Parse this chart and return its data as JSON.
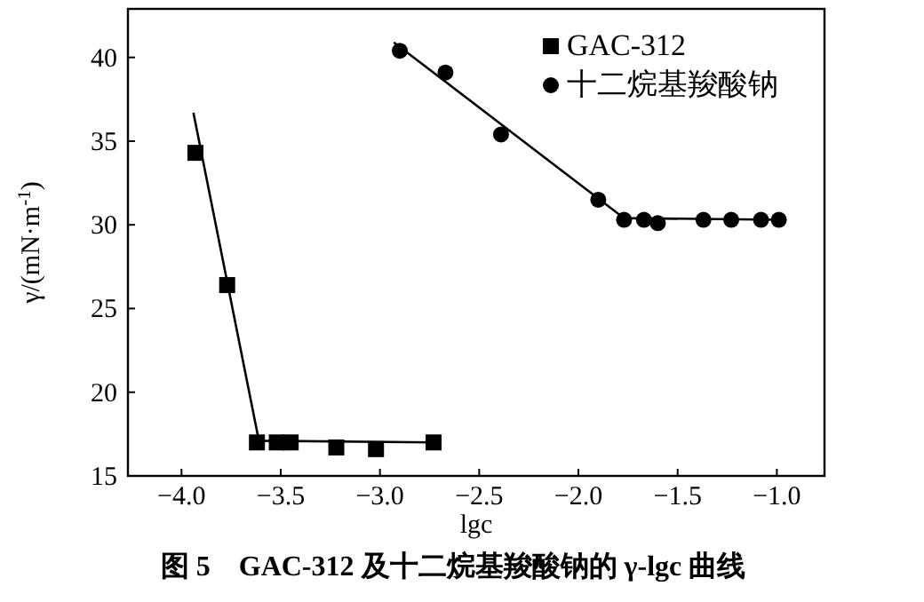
{
  "chart_data": {
    "type": "scatter",
    "xlabel": "lgc",
    "ylabel": "γ/(mN·m$^{-1}$)",
    "legend": "top right",
    "annotations": [
      "图 5　GAC-312 及十二烷基羧酸钠的 γ-lgc 曲线"
    ],
    "xlim": [
      -4.27,
      -0.76
    ],
    "ylim": [
      15,
      42.9
    ],
    "xticks": [
      {
        "value": -4.0,
        "label": "−4.0"
      },
      {
        "value": -3.5,
        "label": "−3.5"
      },
      {
        "value": -3.0,
        "label": "−3.0"
      },
      {
        "value": -2.5,
        "label": "−2.5"
      },
      {
        "value": -2.0,
        "label": "−2.0"
      },
      {
        "value": -1.5,
        "label": "−1.5"
      },
      {
        "value": -1.0,
        "label": "−1.0"
      }
    ],
    "yticks": [
      15,
      20,
      25,
      30,
      35,
      40
    ],
    "series": [
      {
        "name": "GAC-312",
        "marker": "square",
        "color": "#000000",
        "x": [
          -3.93,
          -3.77,
          -3.62,
          -3.52,
          -3.45,
          -3.22,
          -3.02,
          -2.73
        ],
        "values": [
          34.3,
          26.4,
          17.0,
          17.0,
          17.0,
          16.7,
          16.6,
          17.0
        ]
      },
      {
        "name": "十二烷基羧酸钠",
        "marker": "circle",
        "color": "#000000",
        "x": [
          -2.9,
          -2.67,
          -2.39,
          -1.9,
          -1.77,
          -1.67,
          -1.6,
          -1.37,
          -1.23,
          -1.08,
          -0.99
        ],
        "values": [
          40.4,
          39.1,
          35.4,
          31.5,
          30.3,
          30.3,
          30.1,
          30.3,
          30.3,
          30.3,
          30.3
        ]
      },
      {
        "type": "line",
        "marker": "none",
        "color": "#000000",
        "x": [
          -3.94,
          -3.61,
          -2.73
        ],
        "values": [
          36.7,
          17.1,
          17.0
        ]
      },
      {
        "type": "line",
        "marker": "none",
        "color": "#000000",
        "x": [
          -2.93,
          -1.77,
          -0.99
        ],
        "values": [
          40.9,
          30.4,
          30.3
        ]
      }
    ]
  }
}
